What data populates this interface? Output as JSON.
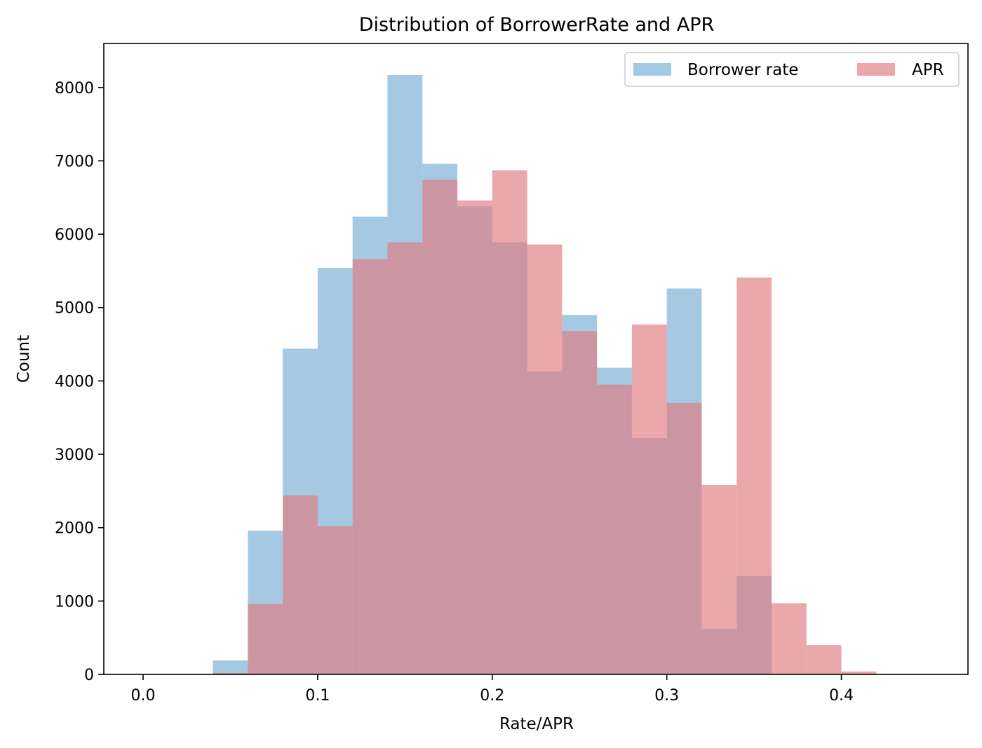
{
  "chart_data": {
    "type": "histogram",
    "title": "Distribution of BorrowerRate and APR",
    "xlabel": "Rate/APR",
    "ylabel": "Count",
    "xlim": [
      -0.0225,
      0.4725
    ],
    "ylim": [
      0,
      8600
    ],
    "xticks": [
      0.0,
      0.1,
      0.2,
      0.3,
      0.4
    ],
    "xtick_labels": [
      "0.0",
      "0.1",
      "0.2",
      "0.3",
      "0.4"
    ],
    "yticks": [
      0,
      1000,
      2000,
      3000,
      4000,
      5000,
      6000,
      7000,
      8000
    ],
    "ytick_labels": [
      "0",
      "1000",
      "2000",
      "3000",
      "4000",
      "5000",
      "6000",
      "7000",
      "8000"
    ],
    "grid": false,
    "legend_position": "top-right",
    "bin_width": 0.02,
    "series": [
      {
        "name": "Borrower rate",
        "color": "#7bafd4",
        "opacity": 0.68,
        "bins_start": [
          0.04,
          0.06,
          0.08,
          0.1,
          0.12,
          0.14,
          0.16,
          0.18,
          0.2,
          0.22,
          0.24,
          0.26,
          0.28,
          0.3,
          0.32,
          0.34
        ],
        "values": [
          190,
          1960,
          4440,
          5540,
          6240,
          8170,
          6960,
          6380,
          5890,
          4130,
          4900,
          4180,
          3220,
          5260,
          620,
          1340
        ]
      },
      {
        "name": "APR",
        "color": "#e07a7f",
        "opacity": 0.65,
        "bins_start": [
          0.04,
          0.06,
          0.08,
          0.1,
          0.12,
          0.14,
          0.16,
          0.18,
          0.2,
          0.22,
          0.24,
          0.26,
          0.28,
          0.3,
          0.32,
          0.34,
          0.36,
          0.38,
          0.4
        ],
        "values": [
          20,
          960,
          2440,
          2020,
          5660,
          5890,
          6740,
          6460,
          6870,
          5860,
          4680,
          3950,
          4770,
          3700,
          2580,
          5410,
          970,
          400,
          40
        ]
      }
    ]
  }
}
